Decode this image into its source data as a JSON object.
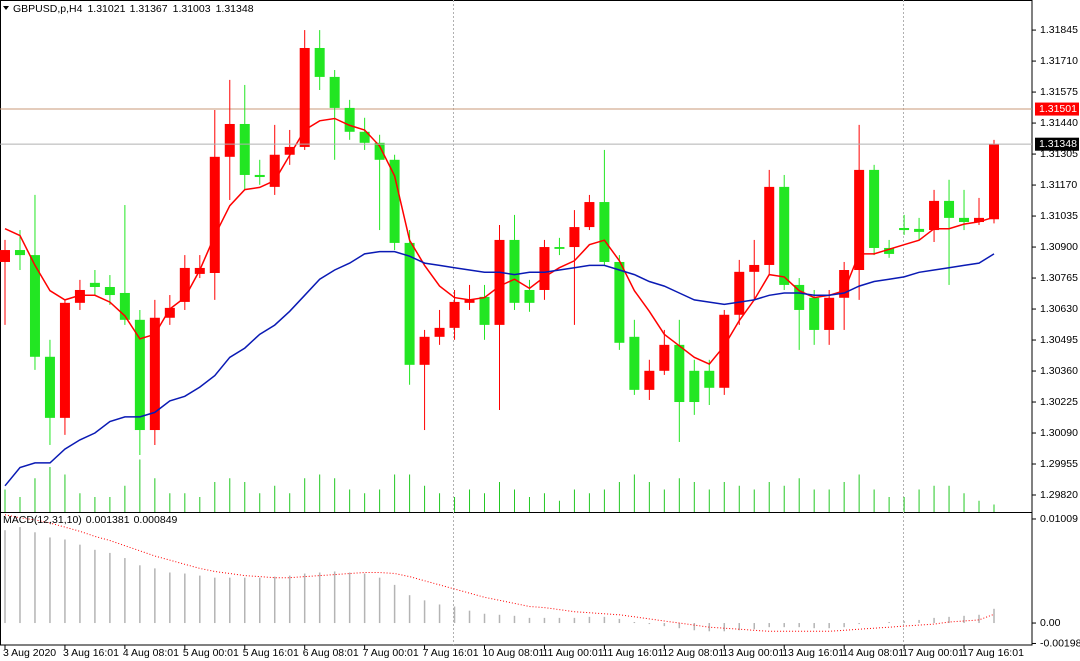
{
  "chart_data": [
    {
      "type": "candlestick",
      "title": "GBPUSD,p,H4",
      "categories": [
        "3 Aug 2020",
        null,
        null,
        null,
        "3 Aug 16:01",
        null,
        null,
        null,
        "4 Aug 08:01",
        null,
        null,
        null,
        "5 Aug 00:01",
        null,
        null,
        null,
        "5 Aug 16:01",
        null,
        null,
        null,
        "6 Aug 08:01",
        null,
        null,
        null,
        "7 Aug 00:01",
        null,
        null,
        null,
        "7 Aug 16:01",
        null,
        null,
        null,
        "10 Aug 08:01",
        null,
        null,
        null,
        "11 Aug 00:01",
        null,
        null,
        null,
        "11 Aug 16:01",
        null,
        null,
        null,
        "12 Aug 08:01",
        null,
        null,
        null,
        "13 Aug 00:01",
        null,
        null,
        null,
        "13 Aug 16:01",
        null,
        null,
        null,
        "14 Aug 08:01",
        null,
        null,
        null,
        "17 Aug 00:01",
        null,
        null,
        null,
        "17 Aug 16:01",
        null,
        null
      ],
      "open": [
        1.30835,
        1.30887,
        1.30865,
        1.30422,
        1.30156,
        1.30657,
        1.30744,
        1.30726,
        1.307,
        1.30583,
        1.30103,
        1.30592,
        1.30661,
        1.30783,
        1.30787,
        1.31293,
        1.31436,
        1.31214,
        1.31162,
        1.31302,
        1.31336,
        1.31767,
        1.31641,
        1.31506,
        1.31402,
        1.31354,
        1.3128,
        1.30918,
        1.30387,
        1.30509,
        1.30548,
        1.30657,
        1.30683,
        1.30561,
        1.30931,
        1.30713,
        1.30713,
        1.309,
        1.309,
        1.30987,
        1.31096,
        1.30835,
        1.30509,
        1.30278,
        1.30361,
        1.30474,
        1.30361,
        1.30361,
        1.30287,
        1.30605,
        1.30792,
        1.30822,
        1.31162,
        1.30735,
        1.30679,
        1.30539,
        1.30679,
        1.308,
        1.31236,
        1.30896,
        1.30983,
        1.30979,
        1.30974,
        1.31101,
        1.31027,
        1.31009,
        1.31021
      ],
      "high": [
        1.30931,
        1.30974,
        1.31127,
        1.30496,
        1.3067,
        1.30757,
        1.308,
        1.30778,
        1.31083,
        1.30626,
        1.3067,
        1.30691,
        1.30865,
        1.30865,
        1.31497,
        1.31628,
        1.31606,
        1.3128,
        1.31432,
        1.3141,
        1.31845,
        1.31845,
        1.31671,
        1.31541,
        1.31463,
        1.31389,
        1.31302,
        1.30974,
        1.30539,
        1.30626,
        1.30713,
        1.30735,
        1.30735,
        1.30996,
        1.3104,
        1.30757,
        1.30931,
        1.3094,
        1.31061,
        1.31127,
        1.31323,
        1.30865,
        1.30583,
        1.30409,
        1.30539,
        1.30583,
        1.30409,
        1.30409,
        1.30626,
        1.30844,
        1.30931,
        1.31236,
        1.31214,
        1.30765,
        1.30713,
        1.30713,
        1.30835,
        1.31432,
        1.31258,
        1.30931,
        1.3104,
        1.31027,
        1.31149,
        1.31193,
        1.31149,
        1.31114,
        1.31367
      ],
      "low": [
        1.30561,
        1.308,
        1.30365,
        1.30038,
        1.30082,
        1.30626,
        1.30691,
        1.30648,
        1.30561,
        1.29994,
        1.30038,
        1.30561,
        1.30626,
        1.30765,
        1.3067,
        1.31105,
        1.31149,
        1.31171,
        1.31127,
        1.31258,
        1.31323,
        1.31584,
        1.3128,
        1.31367,
        1.31323,
        1.30974,
        1.30887,
        1.303,
        1.30103,
        1.30474,
        1.30496,
        1.30626,
        1.30496,
        1.3019,
        1.30626,
        1.30618,
        1.3067,
        1.30865,
        1.30561,
        1.30974,
        1.30822,
        1.30452,
        1.30256,
        1.30234,
        1.30343,
        1.30051,
        1.30169,
        1.30212,
        1.30256,
        1.30561,
        1.3067,
        1.30778,
        1.30713,
        1.30452,
        1.30474,
        1.30474,
        1.30539,
        1.3067,
        1.30865,
        1.30853,
        1.30953,
        1.30931,
        1.30922,
        1.30735,
        1.30974,
        1.30996,
        1.31003
      ],
      "close": [
        1.30887,
        1.30865,
        1.30422,
        1.30156,
        1.30657,
        1.30713,
        1.30726,
        1.30691,
        1.30583,
        1.30103,
        1.30592,
        1.30635,
        1.30809,
        1.30809,
        1.31293,
        1.31436,
        1.31214,
        1.31205,
        1.31302,
        1.31336,
        1.31767,
        1.31641,
        1.31506,
        1.31402,
        1.31354,
        1.3128,
        1.30918,
        1.30387,
        1.30509,
        1.30548,
        1.30661,
        1.3067,
        1.30561,
        1.30931,
        1.30657,
        1.30657,
        1.309,
        1.30892,
        1.30987,
        1.31096,
        1.30835,
        1.30483,
        1.30278,
        1.30361,
        1.30474,
        1.30225,
        1.30225,
        1.30287,
        1.30605,
        1.30792,
        1.30822,
        1.31162,
        1.30735,
        1.30626,
        1.30539,
        1.30679,
        1.308,
        1.31236,
        1.30896,
        1.3087,
        1.30974,
        1.30966,
        1.31101,
        1.31027,
        1.31009,
        1.31027,
        1.31348
      ],
      "up_color": "#ff0000",
      "down_color": "#22e622",
      "ma": [
        {
          "color": "#ff0000",
          "values": [
            1.3098,
            1.3095,
            1.3082,
            1.3071,
            1.3067,
            1.3069,
            1.3069,
            1.3066,
            1.306,
            1.305,
            1.3052,
            1.3063,
            1.3068,
            1.308,
            1.3095,
            1.3108,
            1.3115,
            1.3116,
            1.3119,
            1.313,
            1.3141,
            1.3145,
            1.3146,
            1.3143,
            1.3141,
            1.3134,
            1.3121,
            1.3093,
            1.3082,
            1.3073,
            1.3068,
            1.3067,
            1.3068,
            1.3073,
            1.3076,
            1.3072,
            1.3077,
            1.3081,
            1.3084,
            1.3091,
            1.3093,
            1.3084,
            1.3071,
            1.3062,
            1.3052,
            1.3047,
            1.3042,
            1.3039,
            1.3047,
            1.3058,
            1.3067,
            1.3078,
            1.3077,
            1.3071,
            1.3068,
            1.3069,
            1.3071,
            1.3087,
            1.3087,
            1.3089,
            1.3091,
            1.3093,
            1.3098,
            1.3098,
            1.31,
            1.3101,
            1.3103
          ]
        },
        {
          "color": "#0a1ab4",
          "values": [
            1.2986,
            1.2994,
            1.2996,
            1.2996,
            1.3002,
            1.3006,
            1.3009,
            1.3014,
            1.3016,
            1.3016,
            1.3018,
            1.3023,
            1.3025,
            1.3029,
            1.3034,
            1.3042,
            1.3046,
            1.3052,
            1.3056,
            1.3062,
            1.3069,
            1.3076,
            1.308,
            1.3083,
            1.3087,
            1.3088,
            1.3088,
            1.3086,
            1.3083,
            1.3082,
            1.3081,
            1.308,
            1.3079,
            1.3079,
            1.3078,
            1.3079,
            1.3079,
            1.308,
            1.3081,
            1.3082,
            1.3082,
            1.308,
            1.3078,
            1.3075,
            1.3073,
            1.307,
            1.3067,
            1.3066,
            1.3065,
            1.3066,
            1.3067,
            1.3069,
            1.307,
            1.307,
            1.3069,
            1.3069,
            1.307,
            1.3073,
            1.3075,
            1.3076,
            1.3077,
            1.3079,
            1.308,
            1.3081,
            1.3082,
            1.3083,
            1.3087
          ]
        }
      ],
      "volume": {
        "color": "#22c822",
        "values": [
          30,
          20,
          45,
          60,
          50,
          25,
          20,
          20,
          35,
          70,
          45,
          25,
          25,
          20,
          40,
          45,
          40,
          25,
          35,
          25,
          45,
          50,
          45,
          30,
          25,
          30,
          50,
          50,
          35,
          25,
          20,
          30,
          25,
          40,
          30,
          20,
          25,
          15,
          30,
          25,
          30,
          40,
          50,
          40,
          30,
          45,
          40,
          30,
          40,
          35,
          30,
          40,
          35,
          45,
          30,
          30,
          40,
          50,
          30,
          20,
          20,
          30,
          35,
          35,
          25,
          15,
          10
        ]
      },
      "hlines": [
        {
          "value": 1.31501,
          "color": "#c89a7a",
          "label_color": "#ff0000"
        }
      ],
      "ylim": [
        1.29746,
        1.31976
      ],
      "yticks": [
        1.31845,
        {
          "value": 1.3171,
          "label": "1.31710"
        },
        1.31575,
        {
          "value": 1.3144,
          "label": "1.31440"
        },
        1.31305,
        {
          "value": 1.3117,
          "label": "1.31170"
        },
        1.31035,
        {
          "value": 1.309,
          "label": "1.30900"
        },
        1.30765,
        {
          "value": 1.3063,
          "label": "1.30630"
        },
        1.30495,
        {
          "value": 1.3036,
          "label": "1.30360"
        },
        1.30225,
        {
          "value": 1.3009,
          "label": "1.30090"
        },
        1.29955,
        {
          "value": 1.2982,
          "label": "1.29820"
        }
      ]
    },
    {
      "type": "macd",
      "title": "MACD(12,31,10)",
      "histogram": {
        "color": "#b4b4b4",
        "values": [
          0.009,
          0.0093,
          0.0088,
          0.0083,
          0.0081,
          0.0076,
          0.0071,
          0.0068,
          0.0063,
          0.0056,
          0.0053,
          0.0049,
          0.0048,
          0.0046,
          0.0044,
          0.0044,
          0.0044,
          0.0044,
          0.0045,
          0.0046,
          0.0048,
          0.0049,
          0.005,
          0.0049,
          0.0048,
          0.0044,
          0.0037,
          0.0027,
          0.0022,
          0.0018,
          0.0016,
          0.0012,
          0.0009,
          0.0008,
          0.0007,
          0.0005,
          0.0005,
          0.0005,
          0.0005,
          0.0006,
          0.0006,
          0.0004,
          0.0001,
          -0.0001,
          -0.0003,
          -0.0005,
          -0.0007,
          -0.0008,
          -0.0008,
          -0.0007,
          -0.0006,
          -0.0004,
          -0.0004,
          -0.0004,
          -0.0005,
          -0.0005,
          -0.0004,
          -0.0001,
          0,
          0.0001,
          0.0002,
          0.0003,
          0.0005,
          0.0006,
          0.0007,
          0.0008,
          0.001381
        ]
      },
      "signal": {
        "color": "#ff0000",
        "values": [
          0.0105,
          0.0102,
          0.01,
          0.0097,
          0.0093,
          0.0089,
          0.0084,
          0.008,
          0.0075,
          0.007,
          0.0065,
          0.0061,
          0.0057,
          0.0053,
          0.005,
          0.0048,
          0.0046,
          0.0045,
          0.0044,
          0.0044,
          0.0045,
          0.0046,
          0.0047,
          0.0048,
          0.0049,
          0.0049,
          0.0048,
          0.0045,
          0.0041,
          0.0037,
          0.0033,
          0.0029,
          0.0025,
          0.0022,
          0.0019,
          0.0016,
          0.0015,
          0.0013,
          0.0011,
          0.001,
          0.0009,
          0.0008,
          0.0006,
          0.0004,
          0.0002,
          0,
          -0.0002,
          -0.0004,
          -0.0005,
          -0.0006,
          -0.0007,
          -0.0008,
          -0.0008,
          -0.0008,
          -0.0008,
          -0.0008,
          -0.0007,
          -0.0006,
          -0.0005,
          -0.0004,
          -0.0003,
          -0.0002,
          -0.0001,
          0.0001,
          0.0002,
          0.0003,
          0.000849
        ]
      },
      "ylim": [
        -0.00213,
        0.01067
      ],
      "yticks": [
        0.01009,
        {
          "value": 0,
          "label": "0.00"
        },
        -0.001982
      ]
    }
  ]
}
